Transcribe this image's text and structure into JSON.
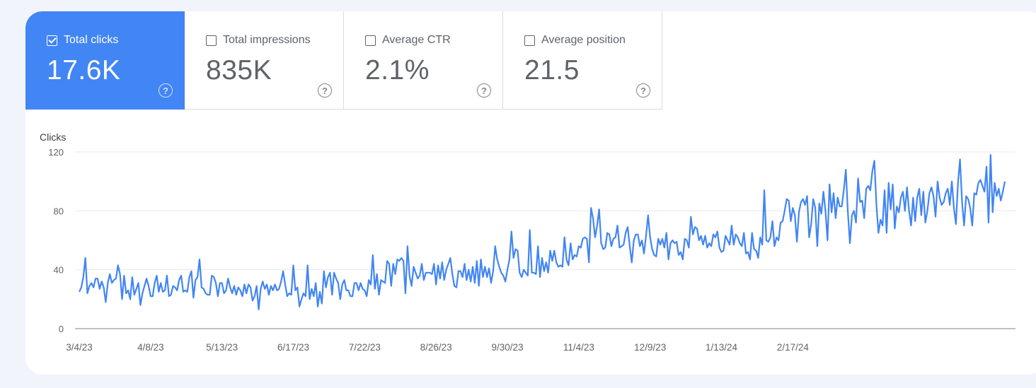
{
  "tiles": [
    {
      "label": "Total clicks",
      "value": "17.6K",
      "checked": true,
      "help": "?"
    },
    {
      "label": "Total impressions",
      "value": "835K",
      "checked": false,
      "help": "?"
    },
    {
      "label": "Average CTR",
      "value": "2.1%",
      "checked": false,
      "help": "?"
    },
    {
      "label": "Average position",
      "value": "21.5",
      "checked": false,
      "help": "?"
    }
  ],
  "colors": {
    "active_tile": "#4285f4",
    "series_line": "#4285f4",
    "grid": "#e8eaed",
    "axis": "#80868b"
  },
  "chart_data": {
    "type": "line",
    "ylabel": "Clicks",
    "ylim": [
      0,
      120
    ],
    "yticks": [
      "0",
      "40",
      "80",
      "120"
    ],
    "ytick_values": [
      0,
      40,
      80,
      120
    ],
    "xticks": [
      "3/4/23",
      "4/8/23",
      "5/13/23",
      "6/17/23",
      "7/22/23",
      "8/26/23",
      "9/30/23",
      "11/4/23",
      "12/9/23",
      "1/13/24",
      "2/17/24"
    ],
    "xtick_index": [
      0,
      35,
      70,
      105,
      140,
      175,
      210,
      245,
      280,
      315,
      350
    ],
    "grid": true,
    "series": [
      {
        "values": [
          25,
          28,
          35,
          48,
          24,
          29,
          31,
          28,
          34,
          34,
          27,
          32,
          28,
          18,
          31,
          37,
          31,
          33,
          34,
          43,
          37,
          20,
          36,
          24,
          26,
          20,
          35,
          23,
          27,
          31,
          16,
          24,
          29,
          34,
          29,
          22,
          22,
          31,
          36,
          25,
          31,
          25,
          26,
          36,
          22,
          23,
          29,
          28,
          26,
          33,
          36,
          25,
          26,
          25,
          35,
          39,
          21,
          33,
          35,
          47,
          28,
          27,
          24,
          23,
          23,
          36,
          35,
          31,
          22,
          31,
          31,
          24,
          26,
          34,
          28,
          24,
          29,
          23,
          28,
          26,
          22,
          30,
          24,
          30,
          28,
          19,
          22,
          29,
          13,
          27,
          32,
          27,
          30,
          23,
          29,
          26,
          30,
          26,
          27,
          32,
          39,
          30,
          22,
          24,
          23,
          43,
          26,
          28,
          15,
          20,
          24,
          22,
          43,
          20,
          27,
          22,
          31,
          15,
          25,
          17,
          39,
          28,
          35,
          38,
          23,
          38,
          34,
          31,
          20,
          30,
          33,
          26,
          26,
          22,
          22,
          31,
          31,
          26,
          31,
          27,
          26,
          22,
          33,
          30,
          50,
          27,
          37,
          23,
          33,
          32,
          31,
          46,
          44,
          29,
          44,
          37,
          47,
          46,
          48,
          46,
          24,
          56,
          36,
          29,
          42,
          38,
          34,
          36,
          44,
          33,
          38,
          38,
          38,
          37,
          44,
          30,
          43,
          34,
          45,
          33,
          40,
          44,
          48,
          37,
          29,
          28,
          39,
          39,
          35,
          44,
          33,
          40,
          32,
          42,
          31,
          46,
          29,
          47,
          35,
          42,
          35,
          41,
          31,
          39,
          56,
          47,
          42,
          38,
          36,
          32,
          40,
          47,
          66,
          48,
          54,
          53,
          38,
          35,
          40,
          38,
          36,
          67,
          38,
          38,
          37,
          56,
          35,
          48,
          39,
          45,
          38,
          53,
          46,
          53,
          45,
          42,
          43,
          42,
          62,
          47,
          43,
          58,
          47,
          50,
          49,
          56,
          55,
          61,
          62,
          61,
          45,
          82,
          75,
          62,
          70,
          81,
          58,
          54,
          55,
          65,
          64,
          56,
          61,
          62,
          70,
          55,
          56,
          57,
          65,
          69,
          56,
          45,
          60,
          64,
          64,
          56,
          60,
          51,
          63,
          77,
          62,
          54,
          50,
          49,
          61,
          57,
          61,
          55,
          65,
          47,
          58,
          60,
          58,
          59,
          50,
          52,
          47,
          61,
          60,
          55,
          76,
          64,
          69,
          68,
          60,
          63,
          57,
          63,
          55,
          58,
          56,
          64,
          62,
          66,
          55,
          52,
          53,
          63,
          60,
          57,
          70,
          57,
          64,
          62,
          58,
          56,
          65,
          51,
          52,
          47,
          65,
          54,
          53,
          48,
          62,
          57,
          94,
          60,
          59,
          62,
          73,
          56,
          62,
          60,
          72,
          73,
          80,
          88,
          87,
          73,
          82,
          77,
          59,
          79,
          86,
          88,
          84,
          90,
          62,
          71,
          88,
          82,
          56,
          85,
          78,
          93,
          80,
          60,
          98,
          79,
          92,
          75,
          89,
          83,
          83,
          94,
          108,
          79,
          58,
          77,
          80,
          72,
          102,
          86,
          87,
          75,
          95,
          97,
          94,
          107,
          114,
          84,
          65,
          74,
          70,
          94,
          65,
          99,
          81,
          98,
          68,
          83,
          79,
          89,
          93,
          80,
          96,
          80,
          70,
          89,
          73,
          89,
          95,
          77,
          93,
          72,
          80,
          92,
          96,
          90,
          76,
          100,
          89,
          84,
          86,
          92,
          95,
          84,
          100,
          82,
          71,
          99,
          115,
          86,
          70,
          90,
          88,
          82,
          70,
          92,
          91,
          99,
          101,
          97,
          93,
          110,
          72,
          118,
          79,
          99,
          90,
          95,
          87,
          93,
          100
        ]
      }
    ]
  }
}
